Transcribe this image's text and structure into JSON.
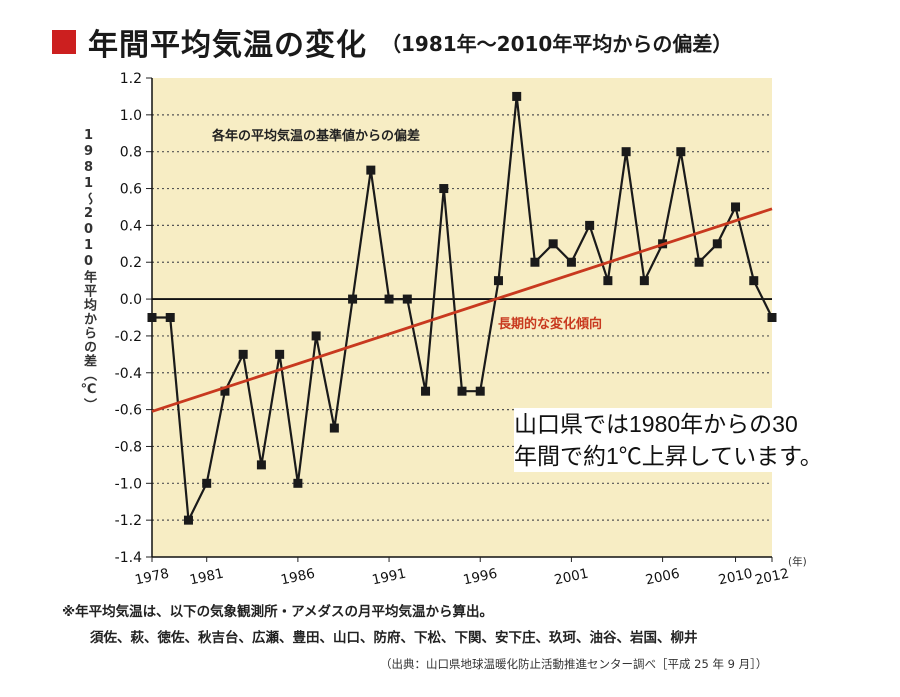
{
  "header": {
    "title": "年間平均気温の変化",
    "subtitle": "（1981年〜2010年平均からの偏差）"
  },
  "colors": {
    "title_square": "#cc1f1f",
    "plot_bg": "#f7edc4",
    "series": "#1a1a1a",
    "trend": "#c8391f"
  },
  "chart_data": {
    "type": "line",
    "ylabel": "1981〜2010年平均からの差（℃）",
    "xunit": "(年)",
    "ylim": [
      -1.4,
      1.2
    ],
    "yticks": [
      "1.2",
      "1.0",
      "0.8",
      "0.6",
      "0.4",
      "0.2",
      "0.0",
      "-0.2",
      "-0.4",
      "-0.6",
      "-0.8",
      "-1.0",
      "-1.2",
      "-1.4"
    ],
    "xticks": [
      "1978",
      "1981",
      "1986",
      "1991",
      "1996",
      "2001",
      "2006",
      "2010",
      "2012"
    ],
    "grid": "dotted",
    "series": [
      {
        "name": "各年の平均気温の基準値からの偏差",
        "x": [
          1978,
          1979,
          1980,
          1981,
          1982,
          1983,
          1984,
          1985,
          1986,
          1987,
          1988,
          1989,
          1990,
          1991,
          1992,
          1993,
          1994,
          1995,
          1996,
          1997,
          1998,
          1999,
          2000,
          2001,
          2002,
          2003,
          2004,
          2005,
          2006,
          2007,
          2008,
          2009,
          2010,
          2011,
          2012
        ],
        "values": [
          -0.1,
          -0.1,
          -1.2,
          -1.0,
          -0.5,
          -0.3,
          -0.9,
          -0.3,
          -1.0,
          -0.2,
          -0.7,
          0.0,
          0.7,
          0.0,
          0.0,
          -0.5,
          0.6,
          -0.5,
          -0.5,
          0.1,
          1.1,
          0.2,
          0.3,
          0.2,
          0.4,
          0.1,
          0.8,
          0.1,
          0.3,
          0.8,
          0.2,
          0.3,
          0.5,
          0.1,
          -0.1
        ]
      },
      {
        "name": "長期的な変化傾向",
        "x": [
          1978,
          2012
        ],
        "values": [
          -0.61,
          0.49
        ]
      }
    ]
  },
  "overlay_text": {
    "line1": "山口県では1980年からの30",
    "line2": "年間で約1℃上昇しています。"
  },
  "notes": {
    "line1": "※年平均気温は、以下の気象観測所・アメダスの月平均気温から算出。",
    "line2": "須佐、萩、徳佐、秋吉台、広瀬、豊田、山口、防府、下松、下関、安下庄、玖珂、油谷、岩国、柳井",
    "source": "（出典：山口県地球温暖化防止活動推進センター調べ［平成 25 年 9 月］）"
  }
}
